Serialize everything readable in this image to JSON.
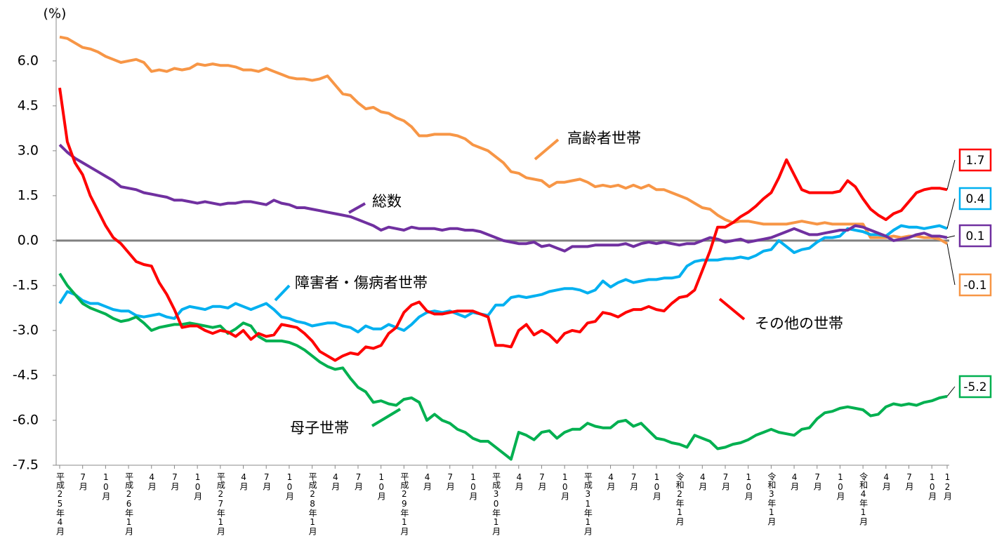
{
  "chart_data": {
    "type": "line",
    "ylabel": "(%)",
    "ylim": [
      -7.5,
      7.8
    ],
    "yticks": [
      -7.5,
      {
        "value": -6,
        "label": "-6.0"
      },
      -4.5,
      {
        "value": -3,
        "label": "-3.0"
      },
      -1.5,
      {
        "value": 0,
        "label": "0.0"
      },
      1.5,
      {
        "value": 3,
        "label": "3.0"
      },
      4.5,
      {
        "value": 6,
        "label": "6.0"
      }
    ],
    "categories": [
      "平成25年4月",
      null,
      null,
      "7月",
      null,
      null,
      "10月",
      null,
      null,
      "平成26年1月",
      null,
      null,
      "4月",
      null,
      null,
      "7月",
      null,
      null,
      "10月",
      null,
      null,
      "平成27年1月",
      null,
      null,
      "4月",
      null,
      null,
      "7月",
      null,
      null,
      "10月",
      null,
      null,
      "平成28年1月",
      null,
      null,
      "4月",
      null,
      null,
      "7月",
      null,
      null,
      "10月",
      null,
      null,
      "平成29年1月",
      null,
      null,
      "4月",
      null,
      null,
      "7月",
      null,
      null,
      "10月",
      null,
      null,
      "平成30年1月",
      null,
      null,
      "4月",
      null,
      null,
      "7月",
      null,
      null,
      "10月",
      null,
      null,
      "平成31年1月",
      null,
      null,
      "4月",
      null,
      null,
      "7月",
      null,
      null,
      "10月",
      null,
      null,
      "令和2年1月",
      null,
      null,
      "4月",
      null,
      null,
      "7月",
      null,
      null,
      "10月",
      null,
      null,
      "令和3年1月",
      null,
      null,
      "4月",
      null,
      null,
      "7月",
      null,
      null,
      "10月",
      null,
      null,
      "令和4年1月",
      null,
      null,
      "4月",
      null,
      null,
      "7月",
      null,
      null,
      "10月",
      null,
      "12月"
    ],
    "series": [
      {
        "name": "総数",
        "color": "#7030a0",
        "values": [
          3.2,
          2.95,
          2.75,
          2.6,
          2.45,
          2.3,
          2.15,
          2.0,
          1.8,
          1.75,
          1.7,
          1.6,
          1.55,
          1.5,
          1.45,
          1.35,
          1.35,
          1.3,
          1.25,
          1.3,
          1.25,
          1.2,
          1.25,
          1.25,
          1.3,
          1.3,
          1.25,
          1.2,
          1.35,
          1.25,
          1.2,
          1.1,
          1.1,
          1.05,
          1.0,
          0.95,
          0.9,
          0.85,
          0.8,
          0.7,
          0.6,
          0.5,
          0.35,
          0.45,
          0.4,
          0.35,
          0.45,
          0.4,
          0.4,
          0.4,
          0.35,
          0.4,
          0.4,
          0.35,
          0.35,
          0.3,
          0.2,
          0.1,
          0.0,
          -0.05,
          -0.1,
          -0.1,
          -0.05,
          -0.2,
          -0.15,
          -0.25,
          -0.35,
          -0.2,
          -0.2,
          -0.2,
          -0.15,
          -0.15,
          -0.15,
          -0.15,
          -0.1,
          -0.2,
          -0.1,
          -0.05,
          -0.1,
          -0.05,
          -0.1,
          -0.15,
          -0.1,
          -0.1,
          0.0,
          0.1,
          0.05,
          -0.05,
          0.0,
          0.05,
          -0.05,
          0.0,
          0.05,
          0.1,
          0.2,
          0.3,
          0.4,
          0.3,
          0.2,
          0.2,
          0.25,
          0.3,
          0.35,
          0.35,
          0.5,
          0.45,
          0.35,
          0.25,
          0.15,
          0.0,
          0.05,
          0.1,
          0.2,
          0.25,
          0.15,
          0.15,
          0.1
        ]
      },
      {
        "name": "高齢者世帯",
        "color": "#f79646",
        "values": [
          6.8,
          6.75,
          6.6,
          6.45,
          6.4,
          6.3,
          6.15,
          6.05,
          5.95,
          6.0,
          6.05,
          5.95,
          5.65,
          5.7,
          5.65,
          5.75,
          5.7,
          5.75,
          5.9,
          5.85,
          5.9,
          5.85,
          5.85,
          5.8,
          5.7,
          5.7,
          5.65,
          5.75,
          5.65,
          5.55,
          5.45,
          5.4,
          5.4,
          5.35,
          5.4,
          5.5,
          5.2,
          4.9,
          4.85,
          4.6,
          4.4,
          4.45,
          4.3,
          4.25,
          4.1,
          4.0,
          3.8,
          3.5,
          3.5,
          3.55,
          3.55,
          3.55,
          3.5,
          3.4,
          3.2,
          3.1,
          3.0,
          2.8,
          2.6,
          2.3,
          2.25,
          2.1,
          2.05,
          2.0,
          1.8,
          1.95,
          1.95,
          2.0,
          2.05,
          1.95,
          1.8,
          1.85,
          1.8,
          1.85,
          1.75,
          1.85,
          1.75,
          1.85,
          1.7,
          1.7,
          1.6,
          1.5,
          1.4,
          1.25,
          1.1,
          1.05,
          0.85,
          0.7,
          0.6,
          0.65,
          0.65,
          0.6,
          0.55,
          0.55,
          0.55,
          0.55,
          0.6,
          0.65,
          0.6,
          0.55,
          0.6,
          0.55,
          0.55,
          0.55,
          0.55,
          0.55,
          0.1,
          0.1,
          0.1,
          0.15,
          0.1,
          0.15,
          0.15,
          0.1,
          0.1,
          0.05,
          -0.1
        ]
      },
      {
        "name": "障害者・傷病者世帯",
        "color": "#00b0f0",
        "values": [
          -2.1,
          -1.7,
          -1.8,
          -2.0,
          -2.1,
          -2.1,
          -2.2,
          -2.3,
          -2.35,
          -2.35,
          -2.5,
          -2.55,
          -2.5,
          -2.45,
          -2.55,
          -2.6,
          -2.3,
          -2.2,
          -2.25,
          -2.3,
          -2.2,
          -2.2,
          -2.25,
          -2.1,
          -2.2,
          -2.3,
          -2.2,
          -2.1,
          -2.3,
          -2.55,
          -2.6,
          -2.7,
          -2.75,
          -2.85,
          -2.8,
          -2.75,
          -2.75,
          -2.85,
          -2.9,
          -3.05,
          -2.85,
          -2.95,
          -2.95,
          -2.8,
          -2.9,
          -3.0,
          -2.8,
          -2.55,
          -2.4,
          -2.35,
          -2.4,
          -2.35,
          -2.45,
          -2.55,
          -2.4,
          -2.45,
          -2.5,
          -2.15,
          -2.15,
          -1.9,
          -1.85,
          -1.9,
          -1.85,
          -1.8,
          -1.7,
          -1.65,
          -1.6,
          -1.6,
          -1.65,
          -1.75,
          -1.65,
          -1.35,
          -1.55,
          -1.4,
          -1.3,
          -1.4,
          -1.35,
          -1.3,
          -1.3,
          -1.25,
          -1.25,
          -1.2,
          -0.85,
          -0.7,
          -0.65,
          -0.65,
          -0.65,
          -0.6,
          -0.6,
          -0.55,
          -0.6,
          -0.5,
          -0.35,
          -0.3,
          0.0,
          -0.2,
          -0.4,
          -0.3,
          -0.25,
          -0.05,
          0.1,
          0.1,
          0.15,
          0.4,
          0.35,
          0.3,
          0.2,
          0.2,
          0.15,
          0.35,
          0.5,
          0.45,
          0.45,
          0.4,
          0.45,
          0.5,
          0.4
        ]
      },
      {
        "name": "母子世帯",
        "color": "#00b050",
        "values": [
          -1.1,
          -1.5,
          -1.8,
          -2.1,
          -2.25,
          -2.35,
          -2.45,
          -2.6,
          -2.7,
          -2.65,
          -2.55,
          -2.75,
          -3.0,
          -2.9,
          -2.85,
          -2.8,
          -2.8,
          -2.75,
          -2.8,
          -2.85,
          -2.9,
          -2.85,
          -3.1,
          -2.95,
          -2.75,
          -2.85,
          -3.2,
          -3.35,
          -3.35,
          -3.35,
          -3.4,
          -3.5,
          -3.65,
          -3.85,
          -4.05,
          -4.2,
          -4.3,
          -4.25,
          -4.6,
          -4.9,
          -5.05,
          -5.4,
          -5.35,
          -5.45,
          -5.5,
          -5.3,
          -5.25,
          -5.4,
          -6.0,
          -5.8,
          -6.0,
          -6.1,
          -6.3,
          -6.4,
          -6.6,
          -6.7,
          -6.7,
          -6.9,
          -7.1,
          -7.3,
          -6.4,
          -6.5,
          -6.65,
          -6.4,
          -6.35,
          -6.6,
          -6.4,
          -6.3,
          -6.3,
          -6.1,
          -6.2,
          -6.25,
          -6.25,
          -6.05,
          -6.0,
          -6.2,
          -6.1,
          -6.35,
          -6.6,
          -6.65,
          -6.75,
          -6.8,
          -6.9,
          -6.5,
          -6.6,
          -6.7,
          -6.95,
          -6.9,
          -6.8,
          -6.75,
          -6.65,
          -6.5,
          -6.4,
          -6.3,
          -6.4,
          -6.45,
          -6.5,
          -6.3,
          -6.25,
          -5.95,
          -5.75,
          -5.7,
          -5.6,
          -5.55,
          -5.6,
          -5.65,
          -5.85,
          -5.8,
          -5.55,
          -5.45,
          -5.5,
          -5.45,
          -5.5,
          -5.4,
          -5.35,
          -5.25,
          -5.2
        ]
      },
      {
        "name": "その他の世帯",
        "color": "#ff0000",
        "values": [
          5.1,
          3.3,
          2.6,
          2.2,
          1.5,
          1.0,
          0.5,
          0.1,
          -0.1,
          -0.4,
          -0.7,
          -0.8,
          -0.85,
          -1.4,
          -1.8,
          -2.3,
          -2.9,
          -2.85,
          -2.85,
          -3.0,
          -3.1,
          -3.0,
          -3.05,
          -3.2,
          -3.0,
          -3.3,
          -3.1,
          -3.2,
          -3.15,
          -2.8,
          -2.85,
          -2.9,
          -3.1,
          -3.35,
          -3.7,
          -3.85,
          -4.0,
          -3.85,
          -3.75,
          -3.8,
          -3.55,
          -3.6,
          -3.5,
          -3.1,
          -2.9,
          -2.4,
          -2.15,
          -2.05,
          -2.35,
          -2.45,
          -2.45,
          -2.4,
          -2.35,
          -2.35,
          -2.35,
          -2.45,
          -2.55,
          -3.5,
          -3.5,
          -3.55,
          -3.0,
          -2.8,
          -3.15,
          -3.0,
          -3.15,
          -3.4,
          -3.1,
          -3.0,
          -3.05,
          -2.75,
          -2.7,
          -2.4,
          -2.45,
          -2.55,
          -2.4,
          -2.3,
          -2.3,
          -2.2,
          -2.3,
          -2.35,
          -2.1,
          -1.9,
          -1.85,
          -1.65,
          -1.0,
          -0.35,
          0.45,
          0.45,
          0.6,
          0.8,
          0.95,
          1.15,
          1.4,
          1.6,
          2.1,
          2.7,
          2.2,
          1.7,
          1.6,
          1.6,
          1.6,
          1.6,
          1.65,
          2.0,
          1.8,
          1.4,
          1.05,
          0.85,
          0.7,
          0.9,
          1.0,
          1.3,
          1.6,
          1.7,
          1.75,
          1.75,
          1.7
        ]
      }
    ]
  }
}
